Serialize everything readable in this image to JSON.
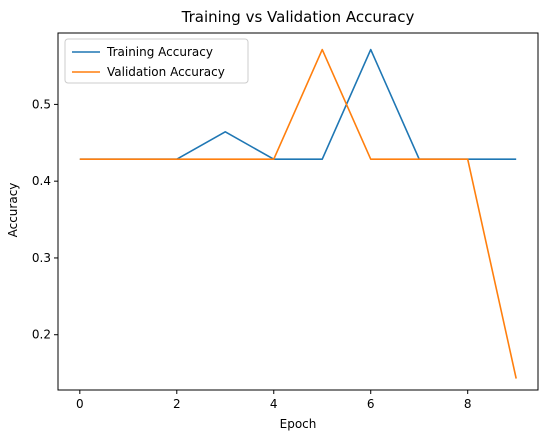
{
  "chart_data": {
    "type": "line",
    "title": "Training vs Validation Accuracy",
    "xlabel": "Epoch",
    "ylabel": "Accuracy",
    "x": [
      0,
      1,
      2,
      3,
      4,
      5,
      6,
      7,
      8,
      9
    ],
    "xlim": [
      -0.45,
      9.45
    ],
    "ylim": [
      0.128,
      0.593
    ],
    "xticks": [
      0,
      2,
      4,
      6,
      8
    ],
    "yticks": [
      0.2,
      0.3,
      0.4,
      0.5
    ],
    "ytick_labels": [
      "0.2",
      "0.3",
      "0.4",
      "0.5"
    ],
    "grid": false,
    "legend_position": "top-left",
    "series": [
      {
        "name": "Training Accuracy",
        "color": "#1f77b4",
        "values": [
          0.4286,
          0.4286,
          0.4286,
          0.4643,
          0.4286,
          0.4286,
          0.5714,
          0.4286,
          0.4286,
          0.4286
        ]
      },
      {
        "name": "Validation Accuracy",
        "color": "#ff7f0e",
        "values": [
          0.4286,
          0.4286,
          0.4286,
          0.4286,
          0.4286,
          0.5714,
          0.4286,
          0.4286,
          0.4286,
          0.1429
        ]
      }
    ]
  }
}
